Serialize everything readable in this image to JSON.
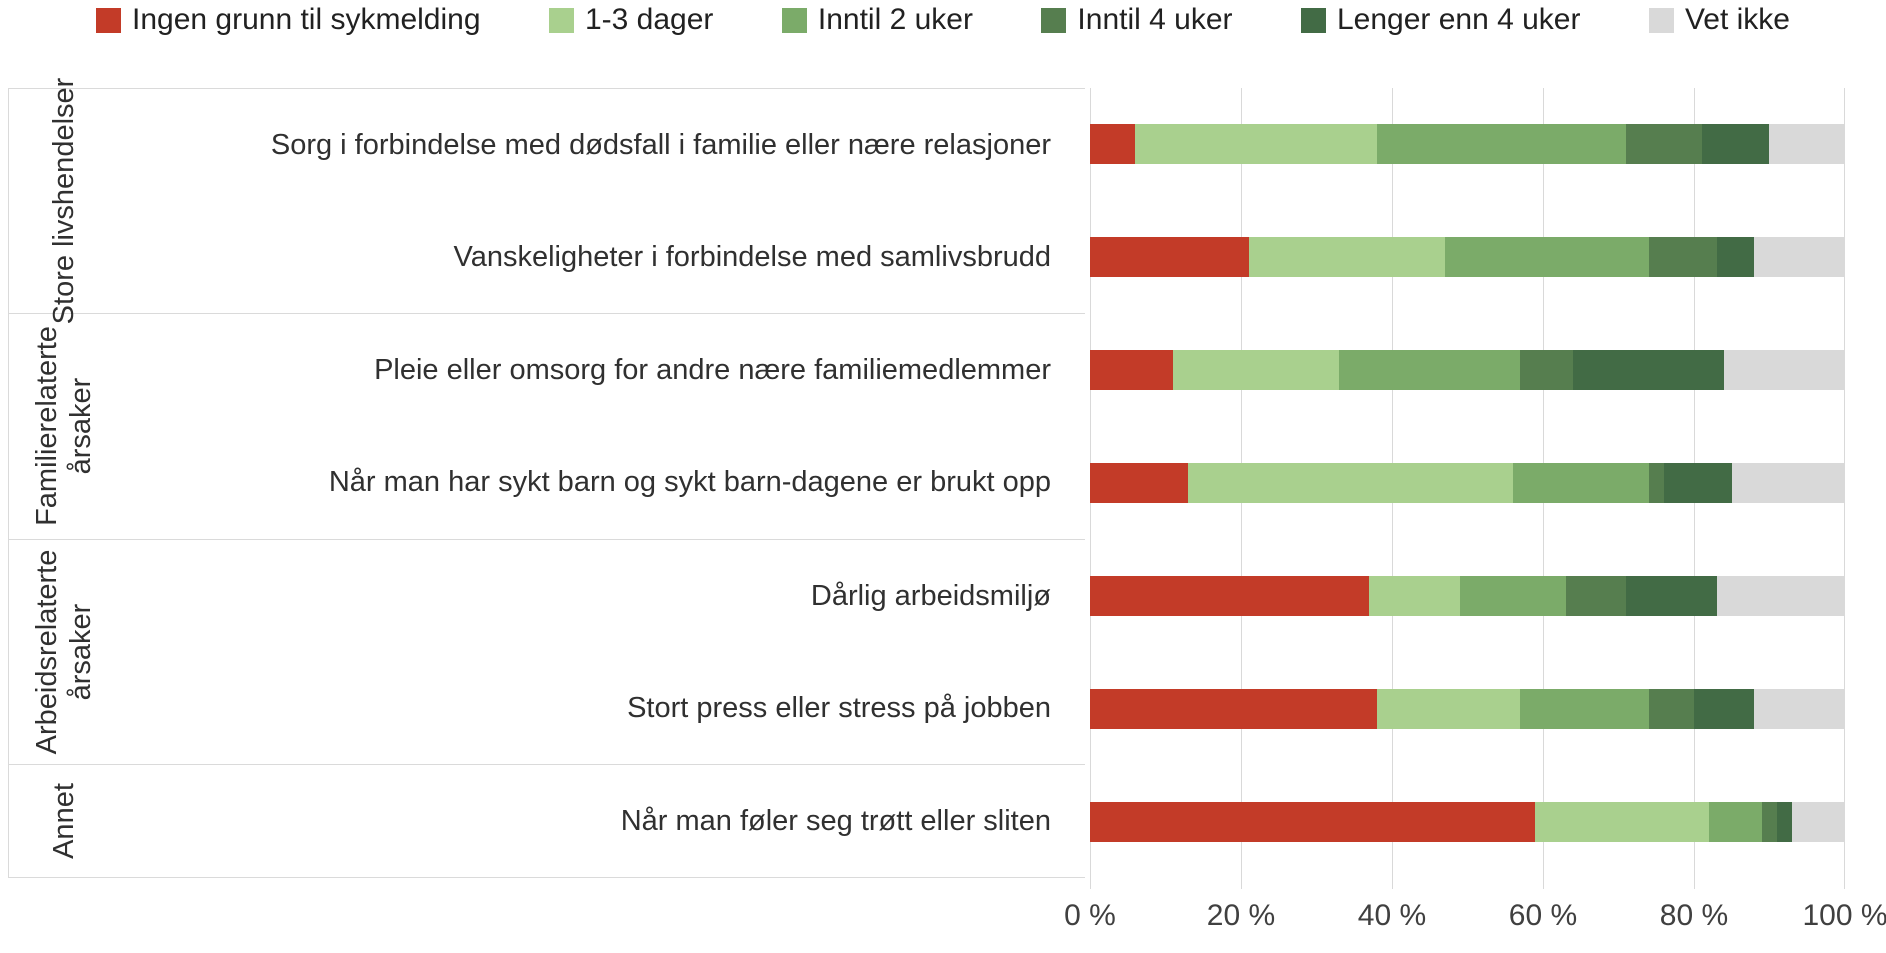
{
  "legend": {
    "items": [
      {
        "label": "Ingen grunn til sykmelding",
        "color": "#c33b28"
      },
      {
        "label": "1-3 dager",
        "color": "#a9d08e"
      },
      {
        "label": "Inntil 2 uker",
        "color": "#7bab69"
      },
      {
        "label": "Inntil 4 uker",
        "color": "#567e4f"
      },
      {
        "label": "Lenger enn 4 uker",
        "color": "#426b45"
      },
      {
        "label": "Vet ikke",
        "color": "#d9d9d9"
      }
    ]
  },
  "chart_data": {
    "type": "bar",
    "orientation": "horizontal-stacked",
    "unit": "percent",
    "title": "",
    "legend_position": "top",
    "series_names": [
      "Ingen grunn til sykmelding",
      "1-3 dager",
      "Inntil 2 uker",
      "Inntil 4 uker",
      "Lenger enn 4 uker",
      "Vet ikke"
    ],
    "series_colors": [
      "#c33b28",
      "#a9d08e",
      "#7bab69",
      "#567e4f",
      "#426b45",
      "#d9d9d9"
    ],
    "groups": [
      {
        "label": "Store livshendelser",
        "rows": [
          {
            "label": "Sorg i forbindelse med dødsfall i familie eller nære relasjoner",
            "values": [
              6,
              32,
              33,
              10,
              9,
              10
            ]
          },
          {
            "label": "Vanskeligheter i forbindelse med samlivsbrudd",
            "values": [
              21,
              26,
              27,
              9,
              5,
              12
            ]
          }
        ]
      },
      {
        "label": "Familierelaterte årsaker",
        "rows": [
          {
            "label": "Pleie eller omsorg for andre nære familiemedlemmer",
            "values": [
              11,
              22,
              24,
              7,
              20,
              16
            ]
          },
          {
            "label": "Når man har sykt barn og sykt barn-dagene er brukt opp",
            "values": [
              13,
              43,
              18,
              2,
              9,
              15
            ]
          }
        ]
      },
      {
        "label": "Arbeidsrelaterte årsaker",
        "rows": [
          {
            "label": "Dårlig arbeidsmiljø",
            "values": [
              37,
              12,
              14,
              8,
              12,
              17
            ]
          },
          {
            "label": "Stort press eller stress på jobben",
            "values": [
              38,
              19,
              17,
              6,
              8,
              12
            ]
          }
        ]
      },
      {
        "label": "Annet",
        "rows": [
          {
            "label": "Når man føler seg trøtt eller sliten",
            "values": [
              59,
              23,
              7,
              2,
              2,
              7
            ]
          }
        ]
      }
    ],
    "x_axis": {
      "min": 0,
      "max": 100,
      "tick_step": 20,
      "tick_labels": [
        "0 %",
        "20 %",
        "40 %",
        "60 %",
        "80 %",
        "100 %"
      ],
      "grid": true
    }
  },
  "style": {
    "gridline_color": "#d9d9d9",
    "separator_color": "#dadada",
    "text_color": "#303030",
    "axis_text_color": "#404040"
  }
}
